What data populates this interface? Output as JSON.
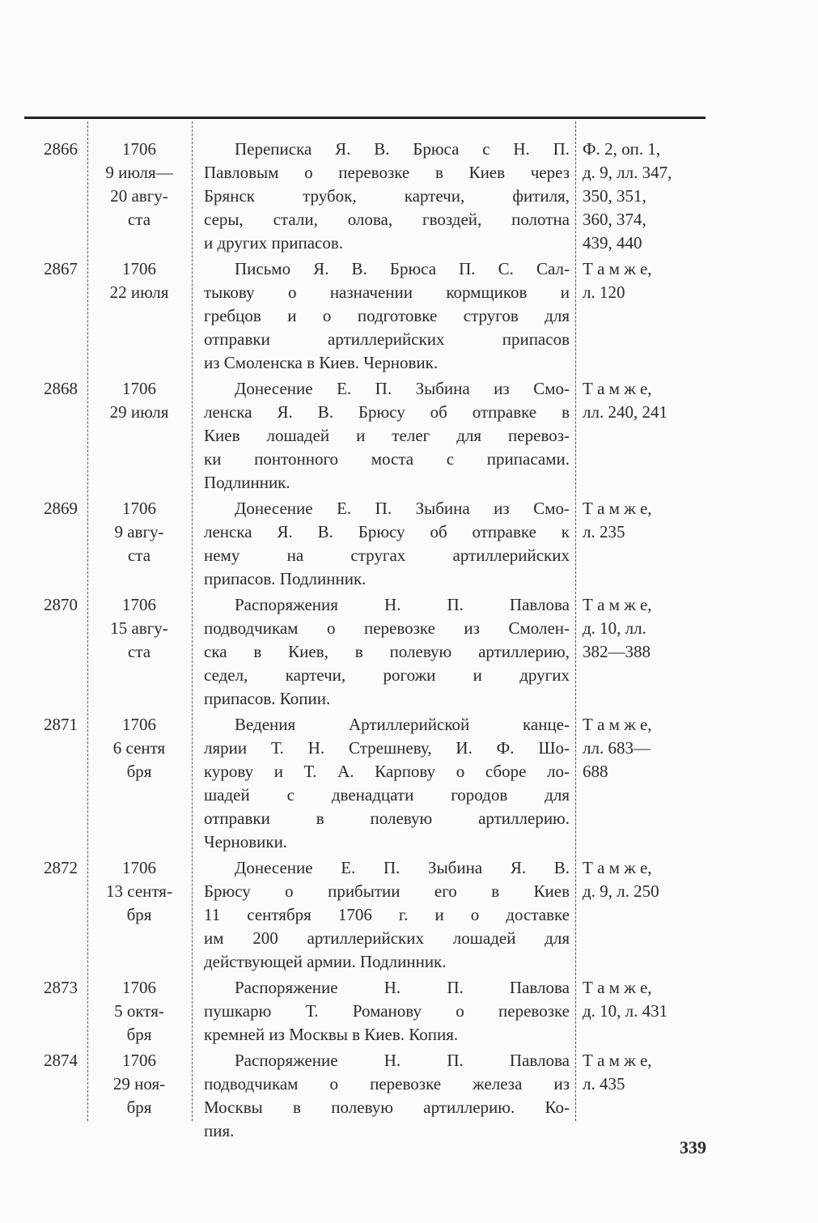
{
  "page_number": "339",
  "entries": [
    {
      "num": "2866",
      "date": [
        "1706",
        "9 июля—",
        "20 авгу-",
        "ста"
      ],
      "desc": [
        "Переписка Я. В. Брюса с Н. П.",
        "Павловым о перевозке в Киев через",
        "Брянск трубок, картечи, фитиля,",
        "серы, стали, олова, гвоздей, полотна",
        "и других припасов."
      ],
      "arch": [
        "Ф. 2, оп. 1,",
        "д. 9, лл. 347,",
        "350, 351,",
        "360, 374,",
        "439, 440"
      ]
    },
    {
      "num": "2867",
      "date": [
        "1706",
        "22 июля"
      ],
      "desc": [
        "Письмо Я. В. Брюса П. С. Сал-",
        "тыкову о назначении кормщиков и",
        "гребцов и о подготовке стругов для",
        "отправки артиллерийских припасов",
        "из Смоленска в Киев. Черновик."
      ],
      "arch": [
        "Т а м  ж е,",
        "л. 120"
      ]
    },
    {
      "num": "2868",
      "date": [
        "1706",
        "29 июля"
      ],
      "desc": [
        "Донесение Е. П. Зыбина из Смо-",
        "ленска Я. В. Брюсу об отправке в",
        "Киев лошадей и телег для перевоз-",
        "ки понтонного моста с припасами.",
        "Подлинник."
      ],
      "arch": [
        "Т а м  ж е,",
        "лл. 240, 241"
      ]
    },
    {
      "num": "2869",
      "date": [
        "1706",
        "9 авгу-",
        "ста"
      ],
      "desc": [
        "Донесение Е. П. Зыбина из Смо-",
        "ленска Я. В. Брюсу об отправке к",
        "нему на стругах артиллерийских",
        "припасов. Подлинник."
      ],
      "arch": [
        "Т а м  ж е,",
        "л. 235"
      ]
    },
    {
      "num": "2870",
      "date": [
        "1706",
        "15 авгу-",
        "ста"
      ],
      "desc": [
        "Распоряжения Н. П. Павлова",
        "подводчикам о перевозке из Смолен-",
        "ска в Киев, в полевую артиллерию,",
        "седел, картечи, рогожи и других",
        "припасов. Копии."
      ],
      "arch": [
        "Т а м  ж е,",
        "д. 10, лл.",
        "382—388"
      ]
    },
    {
      "num": "2871",
      "date": [
        "1706",
        "6 сентя",
        "бря"
      ],
      "desc": [
        "Ведения Артиллерийской канце-",
        "лярии Т. Н. Стрешневу, И. Ф. Шо-",
        "курову и Т. А. Карпову о сборе ло-",
        "шадей с двенадцати городов для",
        "отправки в полевую артиллерию.",
        "Черновики."
      ],
      "arch": [
        "Т а м  ж е,",
        "лл. 683—",
        "688"
      ]
    },
    {
      "num": "2872",
      "date": [
        "1706",
        "13 сентя-",
        "бря"
      ],
      "desc": [
        "Донесение Е. П. Зыбина Я. В.",
        "Брюсу о прибытии его в Киев",
        "11 сентября 1706 г. и о доставке",
        "им 200 артиллерийских лошадей для",
        "действующей армии. Подлинник."
      ],
      "arch": [
        "Т а м  ж е,",
        "д. 9, л. 250"
      ]
    },
    {
      "num": "2873",
      "date": [
        "1706",
        "5 октя-",
        "бря"
      ],
      "desc": [
        "Распоряжение Н. П. Павлова",
        "пушкарю Т. Романову о перевозке",
        "кремней из Москвы в Киев. Копия."
      ],
      "arch": [
        "Т а м  ж е,",
        "д. 10, л. 431"
      ]
    },
    {
      "num": "2874",
      "date": [
        "1706",
        "29 ноя-",
        "бря"
      ],
      "desc": [
        "Распоряжение Н. П. Павлова",
        "подводчикам о перевозке железа из",
        "Москвы в полевую артиллерию. Ко-",
        "пия."
      ],
      "arch": [
        "Т а м  ж е,",
        "л. 435"
      ]
    }
  ]
}
